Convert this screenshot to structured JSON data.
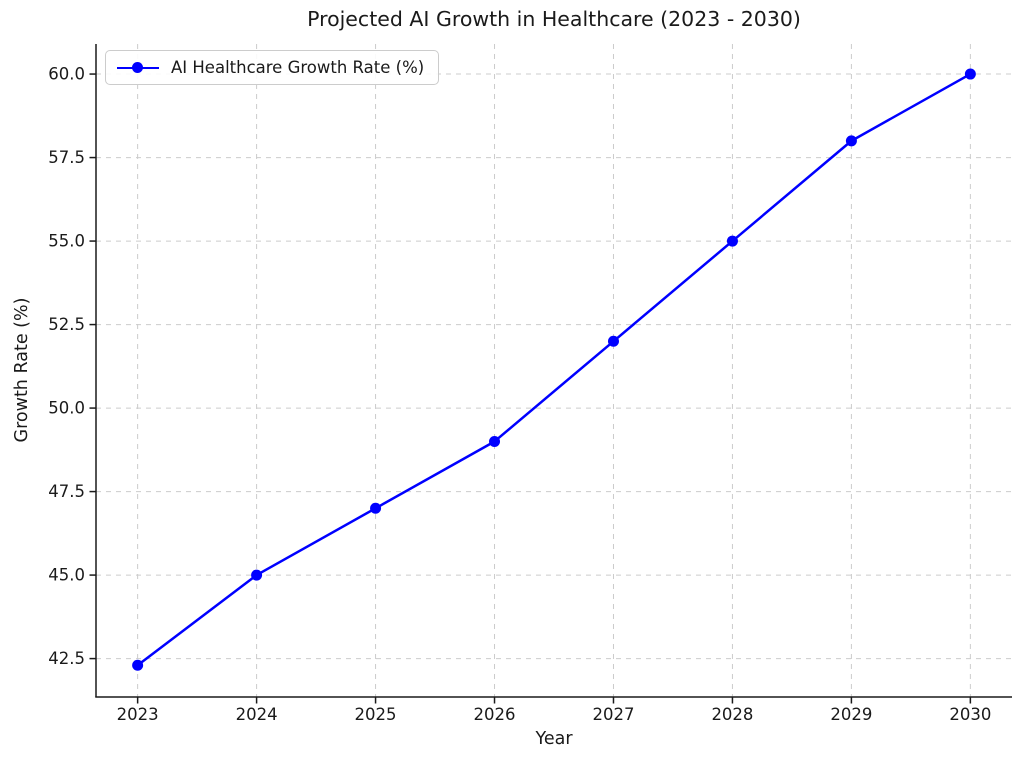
{
  "chart_data": {
    "type": "line",
    "title": "Projected AI Growth in Healthcare (2023 - 2030)",
    "xlabel": "Year",
    "ylabel": "Growth Rate (%)",
    "x": [
      2023,
      2024,
      2025,
      2026,
      2027,
      2028,
      2029,
      2030
    ],
    "series": [
      {
        "name": "AI Healthcare Growth Rate (%)",
        "values": [
          42.3,
          45.0,
          47.0,
          49.0,
          52.0,
          55.0,
          58.0,
          60.0
        ],
        "color": "#0000ff",
        "marker": "circle"
      }
    ],
    "xticks": [
      2023,
      2024,
      2025,
      2026,
      2027,
      2028,
      2029,
      2030
    ],
    "xtick_labels": [
      "2023",
      "2024",
      "2025",
      "2026",
      "2027",
      "2028",
      "2029",
      "2030"
    ],
    "yticks": [
      42.5,
      45.0,
      47.5,
      50.0,
      52.5,
      55.0,
      57.5,
      60.0
    ],
    "ytick_labels": [
      "42.5",
      "45.0",
      "47.5",
      "50.0",
      "52.5",
      "55.0",
      "57.5",
      "60.0"
    ],
    "xlim": [
      2022.65,
      2030.35
    ],
    "ylim": [
      41.35,
      60.9
    ],
    "grid": true,
    "grid_style": "dashed",
    "legend_position": "upper left",
    "colors": {
      "line": "#0000ff",
      "grid": "#cccccc",
      "text": "#1a1a1a",
      "spine": "#1a1a1a",
      "background": "#ffffff"
    }
  }
}
